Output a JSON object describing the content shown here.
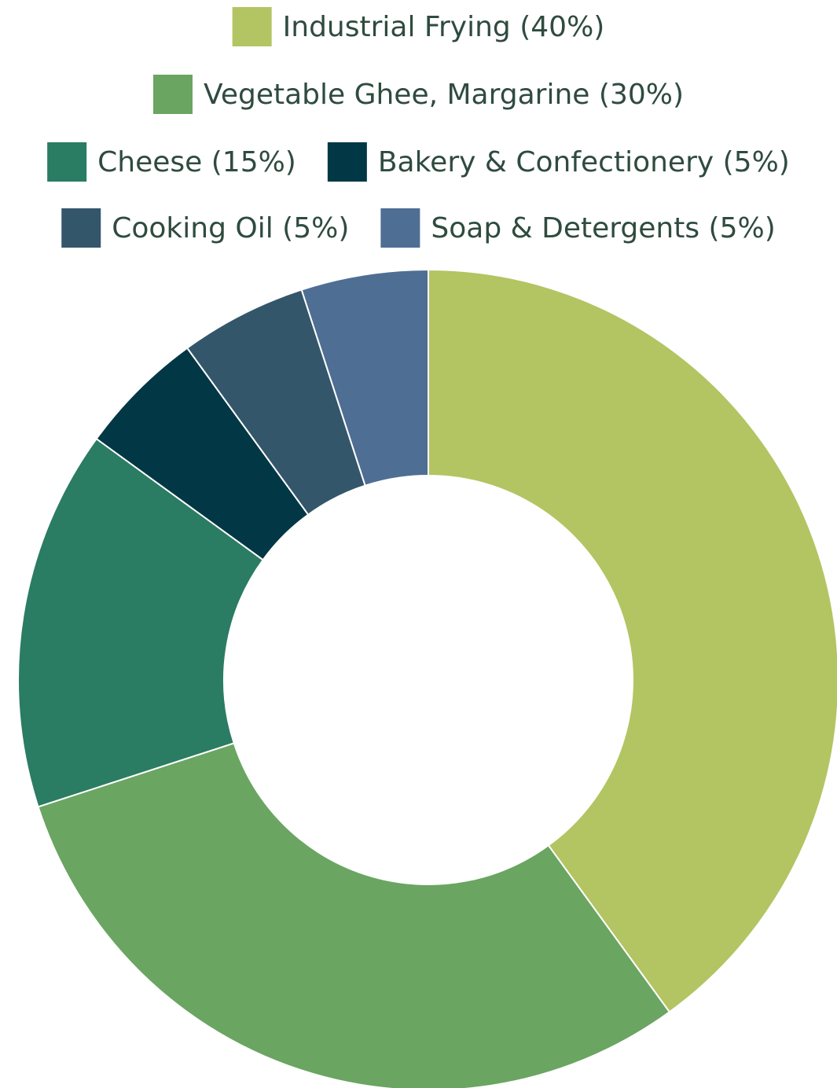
{
  "chart_data": {
    "type": "pie",
    "variant": "donut",
    "legend_position": "top",
    "slices": [
      {
        "label": "Industrial Frying (40%)",
        "value": 40,
        "color": "#b3c462"
      },
      {
        "label": "Vegetable Ghee, Margarine (30%)",
        "value": 30,
        "color": "#6aa562"
      },
      {
        "label": "Cheese (15%)",
        "value": 15,
        "color": "#2a7c63"
      },
      {
        "label": "Bakery & Confectionery (5%)",
        "value": 5,
        "color": "#023745"
      },
      {
        "label": "Cooking Oil (5%)",
        "value": 5,
        "color": "#34566b"
      },
      {
        "label": "Soap & Detergents (5%)",
        "value": 5,
        "color": "#4e6e94"
      }
    ]
  }
}
